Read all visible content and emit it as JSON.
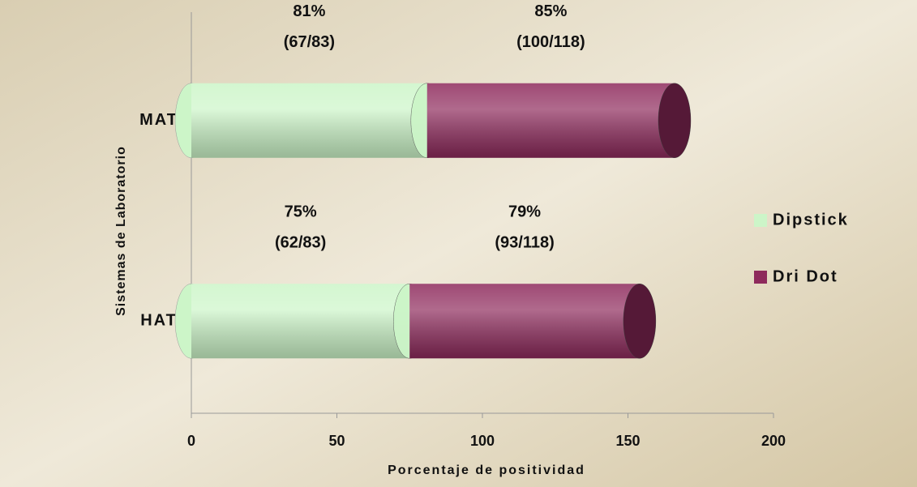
{
  "chart_data": {
    "type": "bar",
    "orientation": "horizontal",
    "stacked": true,
    "categories": [
      "MAT",
      "HAT"
    ],
    "series": [
      {
        "name": "Dipstick",
        "color": "#ccf5c8",
        "values": [
          81,
          75
        ],
        "value_labels": [
          "81%",
          "75%"
        ],
        "fractions": [
          "(67/83)",
          "(62/83)"
        ]
      },
      {
        "name": "Dri Dot",
        "color": "#8e2a5c",
        "values": [
          85,
          79
        ],
        "value_labels": [
          "85%",
          "79%"
        ],
        "fractions": [
          "(100/118)",
          "(93/118)"
        ]
      }
    ],
    "xlabel": "Porcentaje de positividad",
    "ylabel": "Sistemas de Laboratorio",
    "xlim": [
      0,
      200
    ],
    "xticks": [
      0,
      50,
      100,
      150,
      200
    ],
    "legend": "right"
  }
}
